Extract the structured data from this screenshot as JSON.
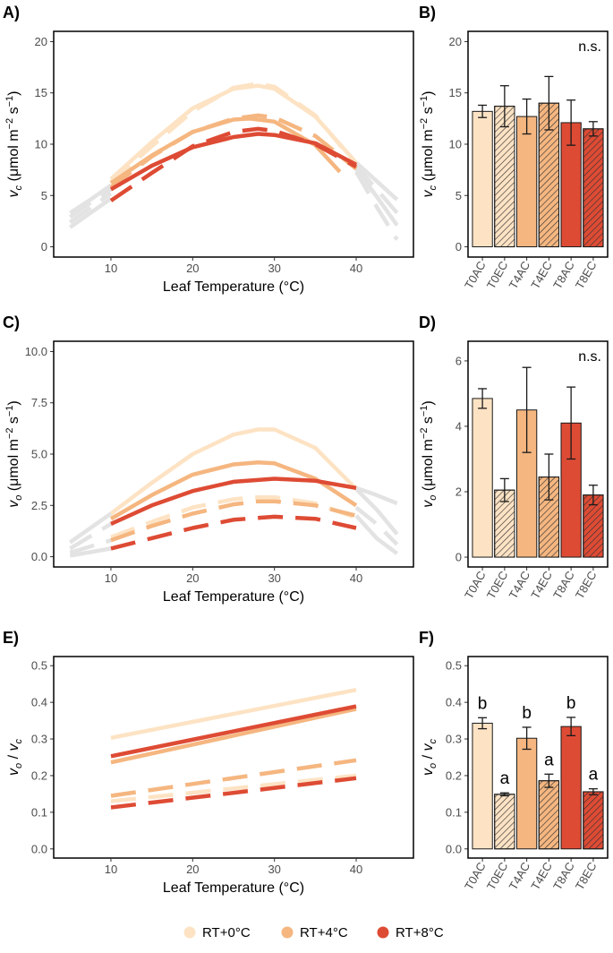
{
  "colors": {
    "rt0": "#FDE3C4",
    "rt4": "#F5B680",
    "rt8": "#DE4B34",
    "grey": "#E3E3E3",
    "errorbar": "#1a1a1a"
  },
  "legend": {
    "items": [
      {
        "label": "RT+0°C",
        "color_key": "rt0"
      },
      {
        "label": "RT+4°C",
        "color_key": "rt4"
      },
      {
        "label": "RT+8°C",
        "color_key": "rt8"
      }
    ]
  },
  "chart_data": [
    {
      "id": "A",
      "panel_label": "A)",
      "type": "line",
      "xlabel": "Leaf Temperature (°C)",
      "xlim": [
        3,
        47
      ],
      "ylim": [
        -1,
        21
      ],
      "xticks": [
        10,
        20,
        30,
        40
      ],
      "yticks": [
        0,
        5,
        10,
        15,
        20
      ],
      "ylabel_symbol": "vc",
      "series": [
        {
          "name": "RT+0°C AC",
          "color_key": "rt0",
          "style": "solid",
          "x": [
            10,
            15,
            20,
            25,
            28,
            30,
            35,
            40
          ],
          "y": [
            6.6,
            10.2,
            13.5,
            15.4,
            15.7,
            15.4,
            12.7,
            8.2
          ]
        },
        {
          "name": "RT+0°C EC",
          "color_key": "rt0",
          "style": "dashed",
          "x": [
            10,
            15,
            20,
            25,
            28,
            30,
            35,
            40
          ],
          "y": [
            6.3,
            9.8,
            13.2,
            15.5,
            15.9,
            15.6,
            12.8,
            8.0
          ]
        },
        {
          "name": "RT+4°C AC",
          "color_key": "rt4",
          "style": "solid",
          "x": [
            10,
            15,
            20,
            25,
            27,
            30,
            35,
            38
          ],
          "y": [
            6.2,
            8.9,
            11.2,
            12.4,
            12.5,
            12.2,
            9.9,
            7.3
          ]
        },
        {
          "name": "RT+4°C EC",
          "color_key": "rt4",
          "style": "dashed",
          "x": [
            10,
            15,
            20,
            25,
            28,
            30,
            35,
            40
          ],
          "y": [
            5.8,
            8.8,
            11.2,
            12.5,
            12.8,
            12.6,
            10.8,
            7.6
          ]
        },
        {
          "name": "RT+8°C AC",
          "color_key": "rt8",
          "style": "solid",
          "x": [
            10,
            15,
            20,
            25,
            28,
            30,
            35,
            40
          ],
          "y": [
            5.6,
            7.9,
            9.7,
            10.7,
            11.0,
            10.9,
            10.1,
            8.0
          ]
        },
        {
          "name": "RT+8°C EC",
          "color_key": "rt8",
          "style": "dashed",
          "x": [
            10,
            15,
            20,
            25,
            28,
            30,
            35,
            40
          ],
          "y": [
            4.5,
            7.2,
            9.8,
            11.2,
            11.5,
            11.3,
            10.0,
            7.8
          ]
        },
        {
          "name": "extrapolation low 1",
          "color_key": "grey",
          "style": "solid",
          "x": [
            5,
            7.5,
            10
          ],
          "y": [
            3.3,
            4.6,
            6.0
          ]
        },
        {
          "name": "extrapolation low 2",
          "color_key": "grey",
          "style": "dashed",
          "x": [
            5,
            7.5,
            10
          ],
          "y": [
            2.9,
            4.3,
            5.6
          ]
        },
        {
          "name": "extrapolation low 3",
          "color_key": "grey",
          "style": "dashed",
          "x": [
            5,
            7.5,
            10
          ],
          "y": [
            2.4,
            3.8,
            5.2
          ]
        },
        {
          "name": "extrapolation low 4",
          "color_key": "grey",
          "style": "solid",
          "x": [
            5,
            7.5,
            10
          ],
          "y": [
            1.9,
            3.3,
            4.7
          ]
        },
        {
          "name": "extrapolation high 1",
          "color_key": "grey",
          "style": "solid",
          "x": [
            40,
            42.5,
            45
          ],
          "y": [
            8.2,
            6.4,
            4.6
          ]
        },
        {
          "name": "extrapolation high 2",
          "color_key": "grey",
          "style": "dashed",
          "x": [
            40,
            42.5,
            45
          ],
          "y": [
            7.9,
            5.6,
            3.3
          ]
        },
        {
          "name": "extrapolation high 3",
          "color_key": "grey",
          "style": "solid",
          "x": [
            40,
            42.5,
            45
          ],
          "y": [
            7.6,
            4.9,
            2.1
          ]
        },
        {
          "name": "extrapolation high 4",
          "color_key": "grey",
          "style": "dashed",
          "x": [
            40,
            42.5,
            45
          ],
          "y": [
            7.3,
            3.9,
            0.7
          ]
        }
      ]
    },
    {
      "id": "B",
      "panel_label": "B)",
      "type": "bar",
      "ylim": [
        -1,
        21
      ],
      "yticks": [
        0,
        5,
        10,
        15,
        20
      ],
      "ylabel_symbol": "vc",
      "annotation": "n.s.",
      "categories": [
        "T0AC",
        "T0EC",
        "T4AC",
        "T4EC",
        "T8AC",
        "T8EC"
      ],
      "values": [
        13.2,
        13.7,
        12.7,
        14.0,
        12.1,
        11.5
      ],
      "errors": [
        0.6,
        2.0,
        1.7,
        2.6,
        2.2,
        0.7
      ],
      "bar_colors": [
        "rt0",
        "rt0",
        "rt4",
        "rt4",
        "rt8",
        "rt8"
      ],
      "hatched": [
        false,
        true,
        false,
        true,
        false,
        true
      ],
      "letters": []
    },
    {
      "id": "C",
      "panel_label": "C)",
      "type": "line",
      "xlabel": "Leaf Temperature (°C)",
      "xlim": [
        3,
        47
      ],
      "ylim": [
        -0.5,
        10.5
      ],
      "xticks": [
        10,
        20,
        30,
        40
      ],
      "yticks": [
        0.0,
        2.5,
        5.0,
        7.5,
        10.0
      ],
      "ylabel_symbol": "vo",
      "series": [
        {
          "name": "RT+0°C AC",
          "color_key": "rt0",
          "style": "solid",
          "x": [
            10,
            15,
            20,
            25,
            28,
            30,
            35,
            40
          ],
          "y": [
            2.1,
            3.6,
            5.0,
            5.95,
            6.2,
            6.2,
            5.3,
            3.3
          ]
        },
        {
          "name": "RT+0°C EC",
          "color_key": "rt0",
          "style": "dashed",
          "x": [
            10,
            15,
            20,
            25,
            28,
            30,
            35,
            40
          ],
          "y": [
            0.95,
            1.7,
            2.4,
            2.8,
            2.9,
            2.9,
            2.6,
            1.9
          ]
        },
        {
          "name": "RT+4°C AC",
          "color_key": "rt4",
          "style": "solid",
          "x": [
            10,
            15,
            20,
            25,
            28,
            30,
            35,
            40
          ],
          "y": [
            1.85,
            3.0,
            4.0,
            4.5,
            4.6,
            4.55,
            3.8,
            2.5
          ]
        },
        {
          "name": "RT+4°C EC",
          "color_key": "rt4",
          "style": "dashed",
          "x": [
            10,
            15,
            20,
            25,
            28,
            30,
            35,
            40
          ],
          "y": [
            0.8,
            1.5,
            2.1,
            2.55,
            2.7,
            2.7,
            2.5,
            2.0
          ]
        },
        {
          "name": "RT+8°C AC",
          "color_key": "rt8",
          "style": "solid",
          "x": [
            10,
            15,
            20,
            25,
            30,
            35,
            40
          ],
          "y": [
            1.6,
            2.5,
            3.2,
            3.65,
            3.8,
            3.7,
            3.35
          ]
        },
        {
          "name": "RT+8°C EC",
          "color_key": "rt8",
          "style": "dashed",
          "x": [
            10,
            15,
            20,
            25,
            30,
            35,
            40
          ],
          "y": [
            0.4,
            0.9,
            1.4,
            1.8,
            1.95,
            1.85,
            1.4
          ]
        },
        {
          "name": "extrapolation low 1",
          "color_key": "grey",
          "style": "solid",
          "x": [
            5,
            10
          ],
          "y": [
            0.7,
            2.1
          ]
        },
        {
          "name": "extrapolation low 2",
          "color_key": "grey",
          "style": "dashed",
          "x": [
            5,
            10
          ],
          "y": [
            0.4,
            1.6
          ]
        },
        {
          "name": "extrapolation low 3",
          "color_key": "grey",
          "style": "dashed",
          "x": [
            5,
            10
          ],
          "y": [
            0.2,
            0.8
          ]
        },
        {
          "name": "extrapolation low 4",
          "color_key": "grey",
          "style": "solid",
          "x": [
            5,
            10
          ],
          "y": [
            0.05,
            0.4
          ]
        },
        {
          "name": "extrapolation high 1",
          "color_key": "grey",
          "style": "solid",
          "x": [
            40,
            42.5,
            45
          ],
          "y": [
            3.35,
            3.0,
            2.6
          ]
        },
        {
          "name": "extrapolation high 2",
          "color_key": "grey",
          "style": "solid",
          "x": [
            40,
            42.5,
            45
          ],
          "y": [
            3.3,
            2.3,
            1.1
          ]
        },
        {
          "name": "extrapolation high 3",
          "color_key": "grey",
          "style": "dashed",
          "x": [
            40,
            42.5,
            45
          ],
          "y": [
            2.4,
            1.6,
            0.6
          ]
        },
        {
          "name": "extrapolation high 4",
          "color_key": "grey",
          "style": "solid",
          "x": [
            40,
            42.5,
            45
          ],
          "y": [
            2.0,
            0.9,
            0.15
          ]
        }
      ]
    },
    {
      "id": "D",
      "panel_label": "D)",
      "type": "bar",
      "ylim": [
        -0.3,
        6.6
      ],
      "yticks": [
        0,
        2,
        4,
        6
      ],
      "ylabel_symbol": "vo",
      "annotation": "n.s.",
      "categories": [
        "T0AC",
        "T0EC",
        "T4AC",
        "T4EC",
        "T8AC",
        "T8EC"
      ],
      "values": [
        4.85,
        2.05,
        4.5,
        2.45,
        4.1,
        1.9
      ],
      "errors": [
        0.3,
        0.35,
        1.3,
        0.7,
        1.1,
        0.3
      ],
      "bar_colors": [
        "rt0",
        "rt0",
        "rt4",
        "rt4",
        "rt8",
        "rt8"
      ],
      "hatched": [
        false,
        true,
        false,
        true,
        false,
        true
      ],
      "letters": []
    },
    {
      "id": "E",
      "panel_label": "E)",
      "type": "line",
      "xlabel": "Leaf Temperature (°C)",
      "xlim": [
        3,
        47
      ],
      "ylim": [
        -0.025,
        0.525
      ],
      "xticks": [
        10,
        20,
        30,
        40
      ],
      "yticks": [
        0.0,
        0.1,
        0.2,
        0.3,
        0.4,
        0.5
      ],
      "ylabel_symbol": "ratio",
      "series": [
        {
          "name": "RT+0°C AC",
          "color_key": "rt0",
          "style": "solid",
          "x": [
            10,
            40
          ],
          "y": [
            0.303,
            0.434
          ]
        },
        {
          "name": "RT+4°C AC",
          "color_key": "rt4",
          "style": "solid",
          "x": [
            10,
            40
          ],
          "y": [
            0.236,
            0.382
          ]
        },
        {
          "name": "RT+8°C AC",
          "color_key": "rt8",
          "style": "solid",
          "x": [
            10,
            40
          ],
          "y": [
            0.253,
            0.389
          ]
        },
        {
          "name": "RT+0°C EC",
          "color_key": "rt0",
          "style": "dashed",
          "x": [
            10,
            40
          ],
          "y": [
            0.13,
            0.2
          ]
        },
        {
          "name": "RT+4°C EC",
          "color_key": "rt4",
          "style": "dashed",
          "x": [
            10,
            40
          ],
          "y": [
            0.145,
            0.242
          ]
        },
        {
          "name": "RT+8°C EC",
          "color_key": "rt8",
          "style": "dashed",
          "x": [
            10,
            40
          ],
          "y": [
            0.113,
            0.193
          ]
        }
      ]
    },
    {
      "id": "F",
      "panel_label": "F)",
      "type": "bar",
      "ylim": [
        -0.025,
        0.525
      ],
      "yticks": [
        0.0,
        0.1,
        0.2,
        0.3,
        0.4,
        0.5
      ],
      "ylabel_symbol": "ratio",
      "annotation": "",
      "categories": [
        "T0AC",
        "T0EC",
        "T4AC",
        "T4EC",
        "T8AC",
        "T8EC"
      ],
      "values": [
        0.343,
        0.149,
        0.302,
        0.186,
        0.334,
        0.156
      ],
      "errors": [
        0.015,
        0.004,
        0.03,
        0.018,
        0.025,
        0.008
      ],
      "bar_colors": [
        "rt0",
        "rt0",
        "rt4",
        "rt4",
        "rt8",
        "rt8"
      ],
      "hatched": [
        false,
        true,
        false,
        true,
        false,
        true
      ],
      "letters": [
        "b",
        "a",
        "b",
        "a",
        "b",
        "a"
      ]
    }
  ]
}
